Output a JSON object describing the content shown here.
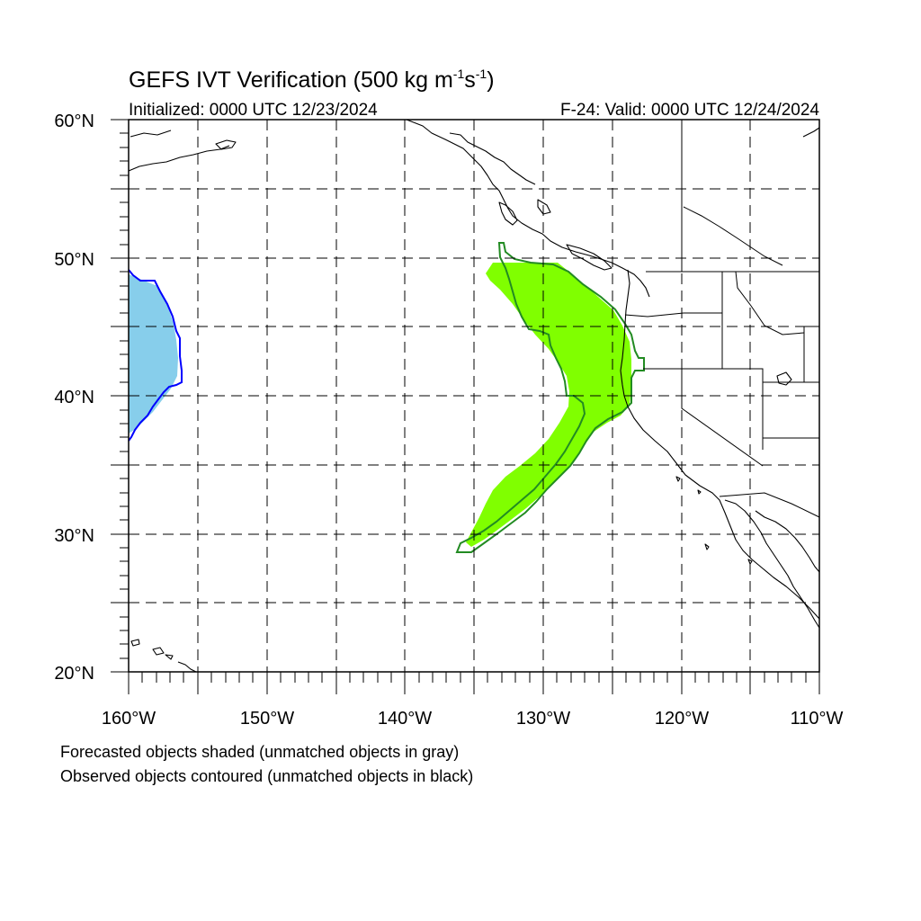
{
  "title": "GEFS IVT Verification (500 kg m",
  "title_unit_exp1": "-1",
  "title_unit_s": "s",
  "title_unit_exp2": "-1",
  "title_close": ")",
  "init_text": "Initialized: 0000 UTC 12/23/2024",
  "valid_text": "F-24: Valid: 0000 UTC 12/24/2024",
  "lat_labels": [
    "60°N",
    "50°N",
    "40°N",
    "30°N",
    "20°N"
  ],
  "lon_labels": [
    "160°W",
    "150°W",
    "140°W",
    "130°W",
    "120°W",
    "110°W"
  ],
  "legend": {
    "line1": "Forecasted objects shaded (unmatched objects in gray)",
    "line2": "Observed objects contoured (unmatched objects in black)"
  },
  "colors": {
    "forecast_matched_1": "#80ff00",
    "forecast_matched_2": "#87ceeb",
    "observed_matched_1": "#228b22",
    "observed_matched_2": "#0000ff"
  },
  "map_extent": {
    "lon_min": -160,
    "lon_max": -110,
    "lat_min": 20,
    "lat_max": 60
  }
}
